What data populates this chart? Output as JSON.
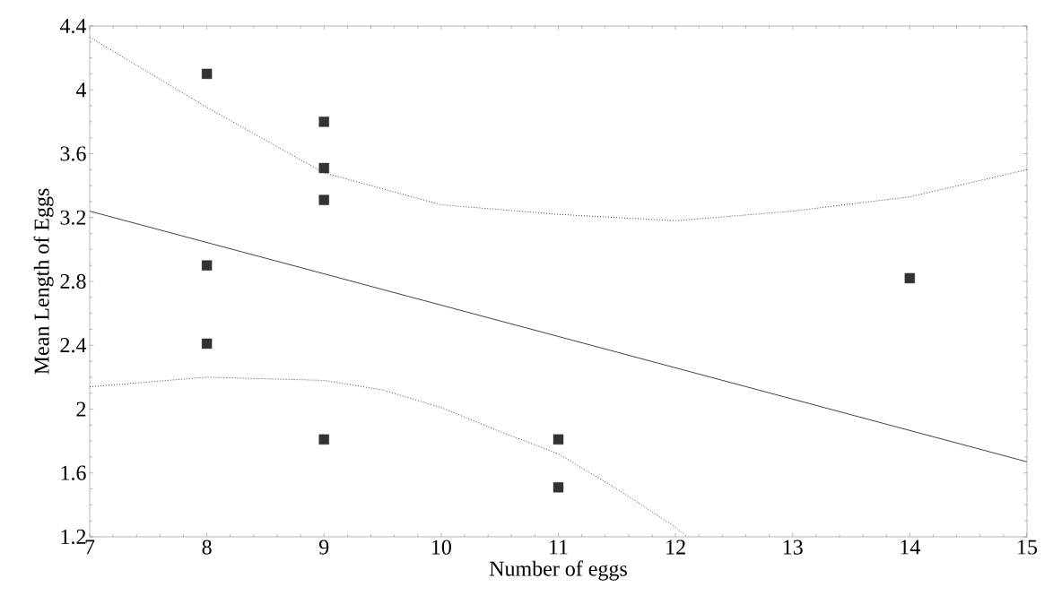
{
  "chart_data": {
    "type": "scatter",
    "xlabel": "Number of eggs",
    "ylabel": "Mean Length of Eggs",
    "xlim": [
      7,
      15
    ],
    "ylim": [
      1.2,
      4.4
    ],
    "xticks": [
      7,
      8,
      9,
      10,
      11,
      12,
      13,
      14,
      15
    ],
    "yticks": [
      1.2,
      1.6,
      2,
      2.4,
      2.8,
      3.2,
      3.6,
      4,
      4.4
    ],
    "grid": false,
    "series": [
      {
        "marker": "square",
        "color": "#333333",
        "x": [
          8,
          8,
          8,
          9,
          9,
          9,
          9,
          11,
          11,
          14
        ],
        "values": [
          4.1,
          2.9,
          2.41,
          3.8,
          3.51,
          3.31,
          1.81,
          1.81,
          1.51,
          2.82
        ]
      },
      {
        "type": "line",
        "marker": "none",
        "line_style": "solid",
        "color": "#444444",
        "x": [
          7,
          15
        ],
        "values": [
          3.24,
          1.67
        ]
      },
      {
        "type": "line",
        "marker": "none",
        "line_style": "dotted",
        "color": "#444444",
        "x": [
          7,
          8,
          9,
          10,
          11,
          12,
          13,
          14,
          15
        ],
        "values": [
          4.33,
          3.89,
          3.48,
          3.28,
          3.22,
          3.18,
          3.24,
          3.33,
          3.5
        ]
      },
      {
        "type": "line",
        "marker": "none",
        "line_style": "dotted",
        "color": "#444444",
        "x": [
          7,
          8,
          9,
          9.5,
          10,
          10.5,
          11,
          11.5,
          12,
          12.1
        ],
        "values": [
          2.14,
          2.2,
          2.18,
          2.12,
          2.01,
          1.86,
          1.72,
          1.5,
          1.26,
          1.2
        ]
      }
    ]
  }
}
